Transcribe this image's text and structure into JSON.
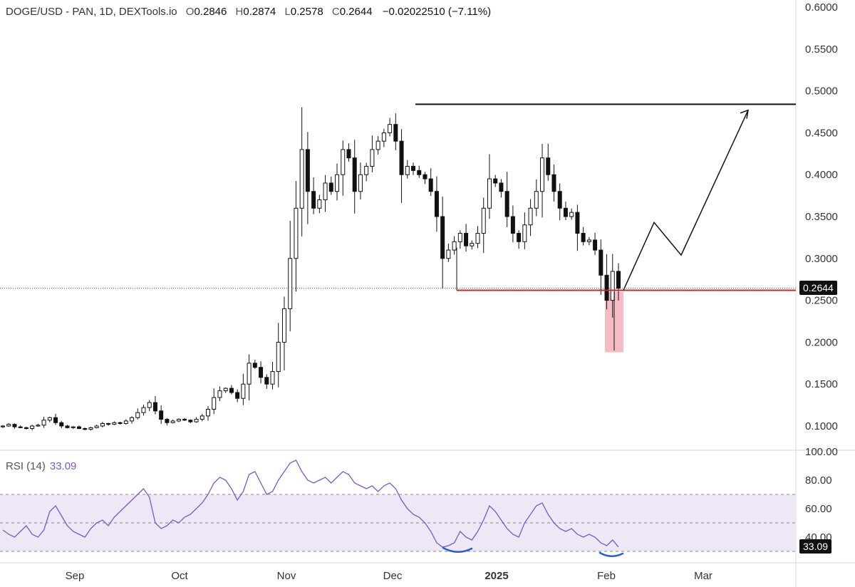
{
  "header": {
    "symbol": "DOGE/USD - PAN, 1D, DEXTools.io",
    "o_label": "O",
    "o_value": "0.2846",
    "h_label": "H",
    "h_value": "0.2874",
    "l_label": "L",
    "l_value": "0.2578",
    "c_label": "C",
    "c_value": "0.2644",
    "change": "−0.02022510 (−7.11%)"
  },
  "colors": {
    "candle": "#111111",
    "support_line": "#c62828",
    "resistance_line": "#111111",
    "rsi_line": "#7e57c2",
    "rsi_band": "#ede7f6",
    "highlight_box": "#f4b6bd",
    "divergence_arc": "#2f5bd3",
    "last_price_tag": "#111111",
    "rsi_tag": "#111111"
  },
  "chart_data": [
    {
      "type": "candlestick",
      "title": "",
      "x": [
        "Sep",
        "Oct",
        "Nov",
        "Dec",
        "2025",
        "Feb",
        "Mar"
      ],
      "y_ticks": [
        "0.6000",
        "0.5500",
        "0.5000",
        "0.4500",
        "0.4000",
        "0.3500",
        "0.3000",
        "0.2500",
        "0.2000",
        "0.1500",
        "0.1000"
      ],
      "ylim": [
        0.07,
        0.61
      ],
      "last_price": "0.2644",
      "last_price_value": 0.2644,
      "close_series": [
        0.1,
        0.102,
        0.099,
        0.098,
        0.097,
        0.1,
        0.101,
        0.107,
        0.11,
        0.104,
        0.1,
        0.098,
        0.099,
        0.097,
        0.096,
        0.098,
        0.1,
        0.103,
        0.102,
        0.104,
        0.103,
        0.106,
        0.11,
        0.116,
        0.122,
        0.128,
        0.118,
        0.108,
        0.104,
        0.106,
        0.108,
        0.107,
        0.105,
        0.108,
        0.112,
        0.12,
        0.134,
        0.142,
        0.145,
        0.14,
        0.133,
        0.15,
        0.175,
        0.17,
        0.158,
        0.15,
        0.165,
        0.2,
        0.24,
        0.3,
        0.36,
        0.43,
        0.38,
        0.36,
        0.37,
        0.39,
        0.38,
        0.4,
        0.43,
        0.42,
        0.38,
        0.4,
        0.41,
        0.43,
        0.44,
        0.45,
        0.46,
        0.44,
        0.4,
        0.41,
        0.405,
        0.4,
        0.395,
        0.38,
        0.35,
        0.3,
        0.31,
        0.32,
        0.33,
        0.315,
        0.318,
        0.33,
        0.36,
        0.395,
        0.39,
        0.38,
        0.35,
        0.33,
        0.32,
        0.34,
        0.36,
        0.38,
        0.42,
        0.4,
        0.38,
        0.36,
        0.35,
        0.355,
        0.33,
        0.32,
        0.322,
        0.31,
        0.28,
        0.25,
        0.2846,
        0.2644
      ],
      "resistance_level": 0.484,
      "support_level": 0.262,
      "projection": [
        [
          "2025-02-05",
          0.262
        ],
        [
          "2025-02-12",
          0.343
        ],
        [
          "2025-02-19",
          0.304
        ],
        [
          "2025-03-03",
          0.477
        ]
      ],
      "highlight_range": [
        0.188,
        0.26
      ]
    },
    {
      "type": "line",
      "title": "",
      "name": "RSI (14)",
      "value_label": "33.09",
      "y_ticks": [
        "100.00",
        "80.00",
        "60.00",
        "40.00"
      ],
      "ylim": [
        29,
        100
      ],
      "bands": [
        30,
        50,
        70
      ],
      "values": [
        45,
        42,
        40,
        44,
        48,
        42,
        40,
        45,
        58,
        62,
        55,
        48,
        44,
        42,
        40,
        46,
        50,
        52,
        48,
        54,
        58,
        62,
        66,
        70,
        74,
        68,
        50,
        46,
        48,
        52,
        50,
        54,
        56,
        60,
        64,
        70,
        78,
        82,
        80,
        74,
        66,
        72,
        84,
        86,
        78,
        70,
        72,
        80,
        86,
        92,
        94,
        86,
        80,
        78,
        80,
        82,
        78,
        82,
        86,
        84,
        78,
        76,
        74,
        76,
        72,
        76,
        78,
        74,
        66,
        60,
        56,
        54,
        50,
        44,
        36,
        33,
        34,
        36,
        44,
        40,
        38,
        44,
        52,
        62,
        58,
        52,
        46,
        42,
        40,
        50,
        56,
        62,
        64,
        56,
        50,
        46,
        44,
        46,
        42,
        40,
        42,
        40,
        36,
        34,
        38,
        33.09
      ]
    }
  ]
}
